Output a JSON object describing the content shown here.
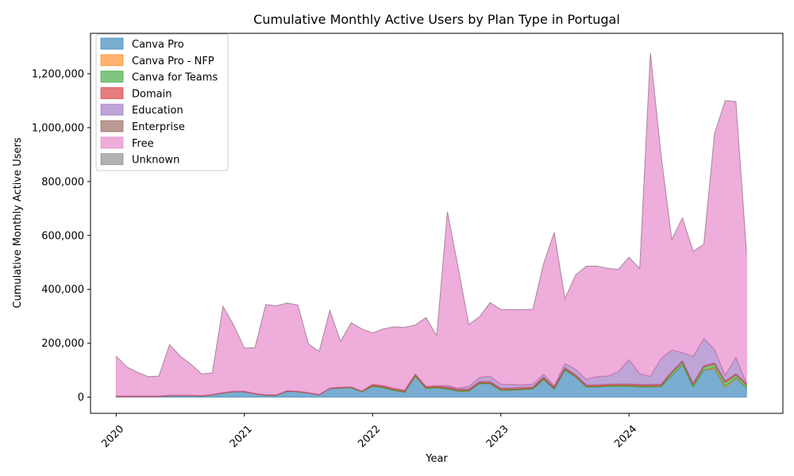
{
  "chart_data": {
    "type": "area",
    "stacked": true,
    "title": "Cumulative Monthly Active Users by Plan Type in Portugal",
    "xlabel": "Year",
    "ylabel": "Cumulative Monthly Active Users",
    "ylim": [
      -60000,
      1350000
    ],
    "yticks": [
      0,
      200000,
      400000,
      600000,
      800000,
      1000000,
      1200000
    ],
    "ytick_labels": [
      "0",
      "200,000",
      "400,000",
      "600,000",
      "800,000",
      "1,000,000",
      "1,200,000"
    ],
    "xticks": [
      0,
      12,
      24,
      36,
      48
    ],
    "xtick_labels": [
      "2020",
      "2021",
      "2022",
      "2023",
      "2024"
    ],
    "x_month_index_range": [
      -2.4,
      62.4
    ],
    "legend_position": "upper-left",
    "grid": false,
    "months": [
      "2020-01",
      "2020-02",
      "2020-03",
      "2020-04",
      "2020-05",
      "2020-06",
      "2020-07",
      "2020-08",
      "2020-09",
      "2020-10",
      "2020-11",
      "2020-12",
      "2021-01",
      "2021-02",
      "2021-03",
      "2021-04",
      "2021-05",
      "2021-06",
      "2021-07",
      "2021-08",
      "2021-09",
      "2021-10",
      "2021-11",
      "2021-12",
      "2022-01",
      "2022-02",
      "2022-03",
      "2022-04",
      "2022-05",
      "2022-06",
      "2022-07",
      "2022-08",
      "2022-09",
      "2022-10",
      "2022-11",
      "2022-12",
      "2023-01",
      "2023-02",
      "2023-03",
      "2023-04",
      "2023-05",
      "2023-06",
      "2023-07",
      "2023-08",
      "2023-09",
      "2023-10",
      "2023-11",
      "2023-12",
      "2024-01",
      "2024-02",
      "2024-03",
      "2024-04",
      "2024-05",
      "2024-06",
      "2024-07",
      "2024-08",
      "2024-09",
      "2024-10",
      "2024-11",
      "2024-12"
    ],
    "series": [
      {
        "name": "Canva Pro",
        "color": "#1f77b4",
        "values": [
          2000,
          2000,
          2000,
          2000,
          2000,
          5000,
          5000,
          5000,
          4000,
          8000,
          15000,
          20000,
          20000,
          12000,
          7000,
          7000,
          22000,
          20000,
          15000,
          8000,
          32000,
          34000,
          35000,
          20000,
          40000,
          35000,
          25000,
          18000,
          78000,
          32000,
          35000,
          30000,
          22000,
          22000,
          50000,
          50000,
          25000,
          26000,
          28000,
          30000,
          65000,
          30000,
          100000,
          75000,
          38000,
          38000,
          40000,
          40000,
          40000,
          38000,
          38000,
          39000,
          80000,
          120000,
          38000,
          100000,
          105000,
          35000,
          70000,
          35000
        ]
      },
      {
        "name": "Canva Pro - NFP",
        "color": "#ff7f0e",
        "values": [
          0,
          0,
          0,
          0,
          0,
          0,
          0,
          0,
          0,
          0,
          0,
          0,
          0,
          0,
          0,
          0,
          0,
          0,
          0,
          0,
          0,
          0,
          0,
          0,
          0,
          0,
          0,
          0,
          0,
          0,
          0,
          0,
          0,
          0,
          0,
          0,
          0,
          0,
          0,
          0,
          0,
          0,
          0,
          0,
          0,
          0,
          0,
          0,
          0,
          0,
          0,
          0,
          0,
          0,
          0,
          0,
          5000,
          5000,
          2000,
          0
        ]
      },
      {
        "name": "Canva for Teams",
        "color": "#2ca02c",
        "values": [
          0,
          0,
          0,
          0,
          0,
          0,
          0,
          0,
          0,
          0,
          0,
          0,
          0,
          0,
          0,
          0,
          0,
          0,
          0,
          0,
          0,
          1000,
          1000,
          1000,
          3000,
          3000,
          3000,
          3000,
          3000,
          3000,
          3000,
          3000,
          3000,
          3000,
          3000,
          3000,
          3000,
          3000,
          3000,
          3000,
          5000,
          3000,
          5000,
          3000,
          3000,
          3000,
          3000,
          4000,
          4000,
          4000,
          4000,
          4000,
          10000,
          10000,
          8000,
          12000,
          12000,
          15000,
          10000,
          10000
        ]
      },
      {
        "name": "Domain",
        "color": "#d62728",
        "values": [
          2000,
          2000,
          2000,
          2000,
          2000,
          2000,
          2000,
          2000,
          2000,
          2000,
          2000,
          2000,
          2000,
          2000,
          2000,
          2000,
          2000,
          2000,
          2000,
          2000,
          2000,
          2000,
          2000,
          2000,
          5000,
          5000,
          5000,
          5000,
          5000,
          5000,
          5000,
          5000,
          5000,
          5000,
          5000,
          5000,
          5000,
          5000,
          5000,
          5000,
          5000,
          5000,
          5000,
          5000,
          5000,
          5000,
          5000,
          5000,
          5000,
          5000,
          5000,
          5000,
          5000,
          5000,
          5000,
          5000,
          5000,
          5000,
          5000,
          5000
        ]
      },
      {
        "name": "Education",
        "color": "#9467bd",
        "values": [
          0,
          0,
          0,
          0,
          0,
          0,
          0,
          0,
          0,
          0,
          0,
          0,
          0,
          0,
          0,
          0,
          0,
          0,
          0,
          0,
          0,
          0,
          0,
          0,
          0,
          0,
          0,
          0,
          0,
          0,
          0,
          5000,
          3000,
          10000,
          15000,
          20000,
          15000,
          13000,
          10000,
          10000,
          10000,
          5000,
          15000,
          20000,
          20000,
          30000,
          30000,
          45000,
          90000,
          40000,
          30000,
          95000,
          80000,
          30000,
          100000,
          100000,
          50000,
          20000,
          60000,
          0
        ]
      },
      {
        "name": "Enterprise",
        "color": "#8c564b",
        "values": [
          0,
          0,
          0,
          0,
          0,
          0,
          0,
          0,
          0,
          0,
          0,
          0,
          0,
          0,
          0,
          0,
          0,
          0,
          0,
          0,
          0,
          0,
          0,
          0,
          0,
          0,
          0,
          0,
          0,
          0,
          0,
          0,
          0,
          0,
          0,
          0,
          0,
          0,
          0,
          0,
          0,
          0,
          0,
          0,
          0,
          0,
          0,
          0,
          0,
          0,
          0,
          0,
          0,
          0,
          0,
          0,
          0,
          0,
          0,
          0
        ]
      },
      {
        "name": "Free",
        "color": "#e377c2",
        "values": [
          148000,
          108000,
          88000,
          72000,
          74000,
          188000,
          145000,
          115000,
          80000,
          80000,
          320000,
          245000,
          160000,
          170000,
          335000,
          330000,
          325000,
          320000,
          180000,
          160000,
          288000,
          170000,
          238000,
          230000,
          190000,
          210000,
          228000,
          233000,
          182000,
          255000,
          185000,
          645000,
          450000,
          230000,
          225000,
          273000,
          277000,
          278000,
          278000,
          278000,
          410000,
          568000,
          240000,
          350000,
          420000,
          410000,
          400000,
          380000,
          380000,
          390000,
          1200000,
          755000,
          410000,
          500000,
          390000,
          350000,
          800000,
          1020000,
          950000,
          485000
        ]
      },
      {
        "name": "Unknown",
        "color": "#7f7f7f",
        "values": [
          0,
          0,
          0,
          0,
          0,
          0,
          0,
          0,
          0,
          0,
          0,
          0,
          0,
          0,
          0,
          0,
          0,
          0,
          0,
          0,
          0,
          0,
          0,
          0,
          0,
          0,
          0,
          0,
          0,
          0,
          0,
          0,
          0,
          0,
          0,
          0,
          0,
          0,
          0,
          0,
          0,
          0,
          0,
          0,
          0,
          0,
          0,
          0,
          0,
          0,
          0,
          0,
          0,
          0,
          0,
          0,
          0,
          0,
          0,
          0
        ]
      }
    ]
  }
}
